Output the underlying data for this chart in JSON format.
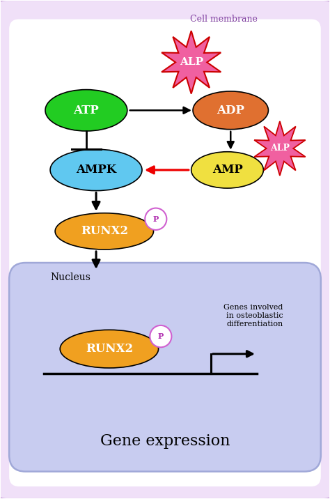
{
  "fig_width": 4.74,
  "fig_height": 7.16,
  "bg_color": "#ffffff",
  "cell_outer_color": "#f0e0f8",
  "cell_outer_edge": "#c8a0d8",
  "cell_inner_color": "#ffffff",
  "cell_membrane_label": "Cell membrane",
  "nucleus_color": "#c8ccf0",
  "nucleus_edge": "#a0a8d8",
  "nucleus_label": "Nucleus",
  "gene_expression_label": "Gene expression",
  "atp_color": "#22cc22",
  "adp_color": "#e07030",
  "amp_color": "#f0e040",
  "ampk_color": "#60c8f0",
  "runx2_color": "#f0a020",
  "alp_outer_color": "#cc0000",
  "alp_fill": "#f060a0",
  "p_circle_color": "#d060d0",
  "p_text_color": "#b030b0",
  "genes_text": "Genes involved\nin osteoblastic\ndifferentiation"
}
